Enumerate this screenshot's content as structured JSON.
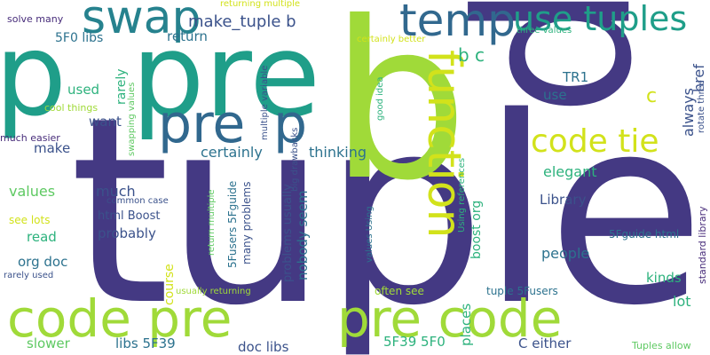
{
  "words": [
    {
      "text": "tuple",
      "color": "#443983"
    },
    {
      "text": "pre",
      "color": "#1f9e89"
    },
    {
      "text": "b",
      "color": "#a0da39"
    },
    {
      "text": "p",
      "color": "#1f9e89"
    },
    {
      "text": "p",
      "color": "#443983"
    },
    {
      "text": "code pre",
      "color": "#a0da39"
    },
    {
      "text": "pre code",
      "color": "#a0da39"
    },
    {
      "text": "temp",
      "color": "#31688e"
    },
    {
      "text": "swap",
      "color": "#26828e"
    },
    {
      "text": "use tuples",
      "color": "#1f9e89"
    },
    {
      "text": "pre",
      "color": "#31688e"
    },
    {
      "text": "p",
      "color": "#31688e"
    },
    {
      "text": "function",
      "color": "#d2e21b"
    },
    {
      "text": "code tie",
      "color": "#d2e21b"
    },
    {
      "text": "make_tuple b",
      "color": "#3b528b"
    },
    {
      "text": "5F0 libs",
      "color": "#2c728e"
    },
    {
      "text": "solve many",
      "color": "#472c7a"
    },
    {
      "text": "returning multiple",
      "color": "#d2e21b"
    },
    {
      "text": "return",
      "color": "#2c728e"
    },
    {
      "text": "b c",
      "color": "#2db27d"
    },
    {
      "text": "TR1",
      "color": "#2c728e"
    },
    {
      "text": "use",
      "color": "#2c728e"
    },
    {
      "text": "c",
      "color": "#d2e21b"
    },
    {
      "text": "always",
      "color": "#3b528b"
    },
    {
      "text": "href",
      "color": "#3b528b"
    },
    {
      "text": "rotate three",
      "color": "#3b528b"
    },
    {
      "text": "used",
      "color": "#2db27d"
    },
    {
      "text": "want",
      "color": "#3b528b"
    },
    {
      "text": "rarely",
      "color": "#2db27d"
    },
    {
      "text": "cool things",
      "color": "#a0da39"
    },
    {
      "text": "much easier",
      "color": "#472c7a"
    },
    {
      "text": "make",
      "color": "#3b528b"
    },
    {
      "text": "swapping values",
      "color": "#5ec962"
    },
    {
      "text": "multiple variable",
      "color": "#3b528b"
    },
    {
      "text": "certainly better",
      "color": "#d2e21b"
    },
    {
      "text": "three values",
      "color": "#2db27d"
    },
    {
      "text": "good idea",
      "color": "#2db27d"
    },
    {
      "text": "certainly",
      "color": "#2c728e"
    },
    {
      "text": "thinking",
      "color": "#2c728e"
    },
    {
      "text": "elegant",
      "color": "#2db27d"
    },
    {
      "text": "values",
      "color": "#5ec962"
    },
    {
      "text": "much",
      "color": "#3b528b"
    },
    {
      "text": "common case",
      "color": "#3b528b"
    },
    {
      "text": "html Boost",
      "color": "#3b528b"
    },
    {
      "text": "see lots",
      "color": "#d2e21b"
    },
    {
      "text": "read",
      "color": "#2db27d"
    },
    {
      "text": "probably",
      "color": "#3b528b"
    },
    {
      "text": "Library",
      "color": "#3b528b"
    },
    {
      "text": "boost org",
      "color": "#2db27d"
    },
    {
      "text": "Using references",
      "color": "#2db27d"
    },
    {
      "text": "standard library",
      "color": "#472c7a"
    },
    {
      "text": "big drawbacks",
      "color": "#3b528b"
    },
    {
      "text": "return multiple",
      "color": "#5ec962"
    },
    {
      "text": "5Fusers 5Fguide",
      "color": "#2c728e"
    },
    {
      "text": "many problems",
      "color": "#3b528b"
    },
    {
      "text": "problems usually",
      "color": "#3b528b"
    },
    {
      "text": "nobody seem",
      "color": "#2c728e"
    },
    {
      "text": "values Using",
      "color": "#2c728e"
    },
    {
      "text": "5Fguide html",
      "color": "#2c728e"
    },
    {
      "text": "people",
      "color": "#2c728e"
    },
    {
      "text": "kinds",
      "color": "#2db27d"
    },
    {
      "text": "org doc",
      "color": "#2c728e"
    },
    {
      "text": "course",
      "color": "#d2e21b"
    },
    {
      "text": "places",
      "color": "#2db27d"
    },
    {
      "text": "lot",
      "color": "#2db27d"
    },
    {
      "text": "rarely used",
      "color": "#3b528b"
    },
    {
      "text": "usually returning",
      "color": "#a0da39"
    },
    {
      "text": "often see",
      "color": "#a0da39"
    },
    {
      "text": "tuple 5Fusers",
      "color": "#2c728e"
    },
    {
      "text": "slower",
      "color": "#5ec962"
    },
    {
      "text": "libs 5F39",
      "color": "#2c728e"
    },
    {
      "text": "doc libs",
      "color": "#3b528b"
    },
    {
      "text": "5F39 5F0",
      "color": "#2db27d"
    },
    {
      "text": "C either",
      "color": "#3b528b"
    },
    {
      "text": "Tuples allow",
      "color": "#5ec962"
    }
  ]
}
